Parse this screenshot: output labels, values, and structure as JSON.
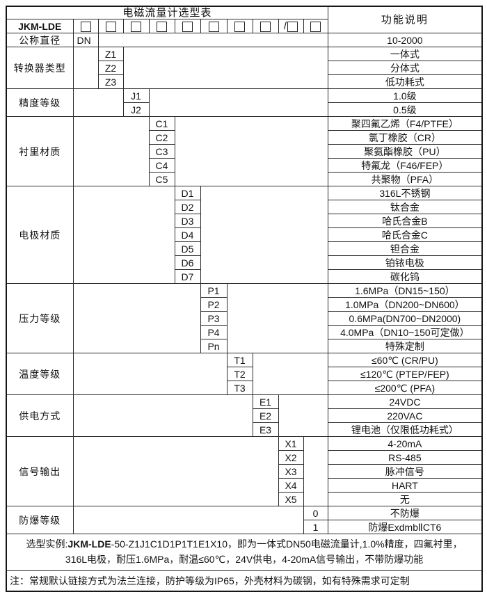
{
  "title": "电磁流量计选型表",
  "desc_header": "功能说明",
  "model": {
    "prefix": "JKM-LDE",
    "slots": [
      "",
      "",
      "",
      "",
      "",
      "",
      "",
      "",
      "/",
      ""
    ],
    "checkbox_glyph": "empty-square"
  },
  "sections": [
    {
      "label": "公称直径",
      "col": 2,
      "codes": [
        "DN"
      ],
      "descs": [
        "10-2000"
      ]
    },
    {
      "label": "转换器类型",
      "col": 3,
      "codes": [
        "Z1",
        "Z2",
        "Z3"
      ],
      "descs": [
        "一体式",
        "分体式",
        "低功耗式"
      ]
    },
    {
      "label": "精度等级",
      "col": 4,
      "codes": [
        "J1",
        "J2"
      ],
      "descs": [
        "1.0级",
        "0.5级"
      ]
    },
    {
      "label": "衬里材质",
      "col": 5,
      "codes": [
        "C1",
        "C2",
        "C3",
        "C4",
        "C5"
      ],
      "descs": [
        "聚四氟乙烯（F4/PTFE）",
        "氯丁橡胶（CR）",
        "聚氨酯橡胶（PU）",
        "特氟龙（F46/FEP）",
        "共聚物（PFA）"
      ]
    },
    {
      "label": "电极材质",
      "col": 6,
      "codes": [
        "D1",
        "D2",
        "D3",
        "D4",
        "D5",
        "D6",
        "D7"
      ],
      "descs": [
        "316L不锈钢",
        "钛合金",
        "哈氏合金B",
        "哈氏合金C",
        "钽合金",
        "铂铱电极",
        "碳化钨"
      ]
    },
    {
      "label": "压力等级",
      "col": 7,
      "codes": [
        "P1",
        "P2",
        "P3",
        "P4",
        "Pn"
      ],
      "descs": [
        "1.6MPa（DN15~150）",
        "1.0MPa（DN200~DN600）",
        "0.6MPa(DN700~DN2000)",
        "4.0MPa（DN10~150可定做）",
        "特殊定制"
      ]
    },
    {
      "label": "温度等级",
      "col": 8,
      "codes": [
        "T1",
        "T2",
        "T3"
      ],
      "descs": [
        "≤60℃ (CR/PU)",
        "≤120℃ (PTEP/FEP)",
        "≤200℃ (PFA)"
      ]
    },
    {
      "label": "供电方式",
      "col": 9,
      "codes": [
        "E1",
        "E2",
        "E3"
      ],
      "descs": [
        "24VDC",
        "220VAC",
        "锂电池（仅限低功耗式）"
      ]
    },
    {
      "label": "信号输出",
      "col": 10,
      "codes": [
        "X1",
        "X2",
        "X3",
        "X4",
        "X5"
      ],
      "descs": [
        "4-20mA",
        "RS-485",
        "脉冲信号",
        "HART",
        "无"
      ]
    },
    {
      "label": "防爆等级",
      "col": 11,
      "codes": [
        "0",
        "1"
      ],
      "descs": [
        "不防爆",
        "防爆ExdmbⅡCT6"
      ]
    }
  ],
  "example": {
    "prefix": "选型实例:",
    "model": "JKM-LDE",
    "line1_rest": "-50-Z1J1C1D1P1T1E1X10，即为一体式DN50电磁流量计,1.0%精度，四氟衬里，",
    "line2": "316L电极，耐压1.6MPa，耐温≤60℃，24V供电，4-20mA信号输出，不带防爆功能"
  },
  "note": "注：常规默认链接方式为法兰连接，防护等级为IP65，外壳材料为碳钢，如有特殊需求可定制"
}
